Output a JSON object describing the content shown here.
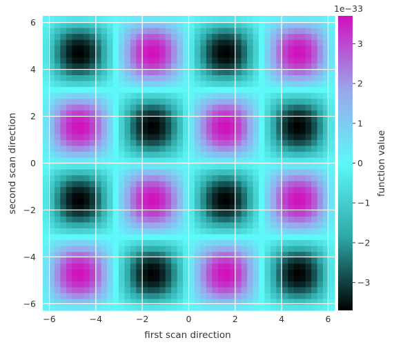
{
  "chart_data": {
    "type": "heatmap",
    "title": "",
    "xlabel": "first scan direction",
    "ylabel": "second scan direction",
    "xlim": [
      -6.283,
      6.283
    ],
    "ylim": [
      -6.283,
      6.283
    ],
    "x_ticks": [
      -6,
      -4,
      -2,
      0,
      2,
      4,
      6
    ],
    "y_ticks": [
      -6,
      -4,
      -2,
      0,
      2,
      4,
      6
    ],
    "x_tick_labels": [
      "−6",
      "−4",
      "−2",
      "0",
      "2",
      "4",
      "6"
    ],
    "y_tick_labels": [
      "−6",
      "−4",
      "−2",
      "0",
      "2",
      "4",
      "6"
    ],
    "grid": true,
    "function": "A * sin(x) * sin(y) with amplitude 3.7e-33 on a 50x50 grid",
    "grid_size": 50,
    "amplitude": 3.7e-33,
    "colorbar": {
      "label": "function value",
      "offset_text": "1e−33",
      "ticks": [
        -3,
        -2,
        -1,
        0,
        1,
        2,
        3
      ],
      "tick_labels": [
        "−3",
        "−2",
        "−1",
        "0",
        "1",
        "2",
        "3"
      ],
      "vmin": -3.7,
      "vmax": 3.7,
      "colors": [
        "#000000",
        "#2fa8a8",
        "#5ef8f8",
        "#9aa6ec",
        "#d010bc"
      ]
    }
  }
}
